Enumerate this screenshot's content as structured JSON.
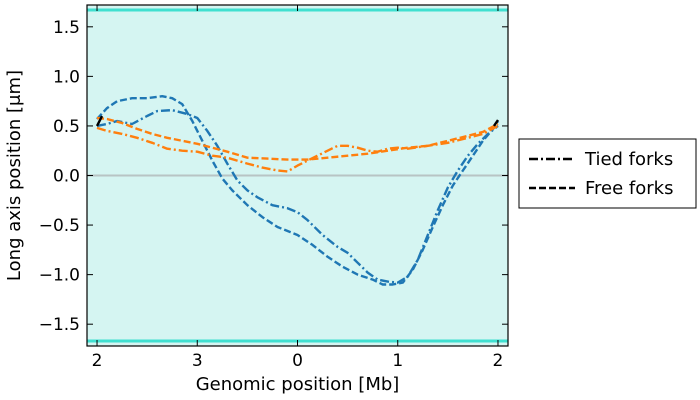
{
  "chart_data": {
    "type": "line",
    "title": "",
    "xlabel": "Genomic position [Mb]",
    "ylabel": "Long axis position [μm]",
    "xlim": [
      -0.1,
      4.1
    ],
    "ylim": [
      -1.72,
      1.72
    ],
    "x_ticks": [
      {
        "pos": 0,
        "label": "2"
      },
      {
        "pos": 1,
        "label": "3"
      },
      {
        "pos": 2,
        "label": "0"
      },
      {
        "pos": 3,
        "label": "1"
      },
      {
        "pos": 4,
        "label": "2"
      }
    ],
    "y_ticks": [
      {
        "value": 1.5,
        "label": "1.5"
      },
      {
        "value": 1.0,
        "label": "1.0"
      },
      {
        "value": 0.5,
        "label": "0.5"
      },
      {
        "value": 0.0,
        "label": "0.0"
      },
      {
        "value": -0.5,
        "label": "−0.5"
      },
      {
        "value": -1.0,
        "label": "−1.0"
      },
      {
        "value": -1.5,
        "label": "−1.5"
      }
    ],
    "background_color": "#d5f5f2",
    "boundary_lines": [
      1.67,
      -1.67
    ],
    "boundary_color": "#40e0d0",
    "zero_line_color": "#b8c4c4",
    "colors": {
      "blue": "#1f77b4",
      "orange": "#ff7f0e"
    },
    "series": [
      {
        "color": "#1f77b4",
        "style": "dashdot",
        "x": [
          0.0,
          0.1,
          0.2,
          0.35,
          0.5,
          0.6,
          0.75,
          0.9,
          1.0,
          1.1,
          1.2,
          1.3,
          1.4,
          1.5,
          1.6,
          1.75,
          1.9,
          2.0,
          2.1,
          2.25,
          2.4,
          2.5,
          2.6,
          2.7,
          2.8,
          2.9,
          3.0,
          3.1,
          3.2,
          3.3,
          3.4,
          3.5,
          3.6,
          3.7,
          3.8,
          3.9,
          4.0
        ],
        "y": [
          0.5,
          0.52,
          0.55,
          0.52,
          0.6,
          0.65,
          0.66,
          0.62,
          0.58,
          0.45,
          0.3,
          0.12,
          -0.05,
          -0.15,
          -0.22,
          -0.3,
          -0.33,
          -0.37,
          -0.45,
          -0.6,
          -0.72,
          -0.78,
          -0.88,
          -0.98,
          -1.05,
          -1.07,
          -1.08,
          -1.02,
          -0.85,
          -0.6,
          -0.35,
          -0.12,
          0.05,
          0.2,
          0.32,
          0.42,
          0.5
        ]
      },
      {
        "color": "#1f77b4",
        "style": "dashed",
        "x": [
          0.0,
          0.1,
          0.2,
          0.35,
          0.5,
          0.65,
          0.75,
          0.85,
          0.95,
          1.05,
          1.15,
          1.25,
          1.35,
          1.5,
          1.65,
          1.8,
          2.0,
          2.15,
          2.3,
          2.45,
          2.6,
          2.75,
          2.85,
          2.95,
          3.05,
          3.15,
          3.25,
          3.35,
          3.45,
          3.55,
          3.65,
          3.75,
          3.85,
          3.95,
          4.0
        ],
        "y": [
          0.57,
          0.68,
          0.75,
          0.78,
          0.78,
          0.8,
          0.78,
          0.72,
          0.55,
          0.35,
          0.15,
          -0.03,
          -0.15,
          -0.3,
          -0.42,
          -0.52,
          -0.6,
          -0.7,
          -0.82,
          -0.92,
          -1.0,
          -1.05,
          -1.1,
          -1.1,
          -1.08,
          -0.95,
          -0.75,
          -0.52,
          -0.3,
          -0.1,
          0.05,
          0.2,
          0.35,
          0.47,
          0.55
        ]
      },
      {
        "color": "#ff7f0e",
        "style": "dashdot",
        "x": [
          0.0,
          0.1,
          0.25,
          0.4,
          0.55,
          0.7,
          0.85,
          1.0,
          1.15,
          1.3,
          1.5,
          1.65,
          1.8,
          1.9,
          2.0,
          2.1,
          2.2,
          2.3,
          2.4,
          2.5,
          2.6,
          2.7,
          2.8,
          2.9,
          3.0,
          3.1,
          3.3,
          3.5,
          3.7,
          3.85,
          4.0
        ],
        "y": [
          0.48,
          0.45,
          0.42,
          0.38,
          0.33,
          0.27,
          0.25,
          0.24,
          0.2,
          0.18,
          0.12,
          0.08,
          0.05,
          0.04,
          0.1,
          0.15,
          0.2,
          0.25,
          0.3,
          0.3,
          0.28,
          0.25,
          0.24,
          0.27,
          0.28,
          0.27,
          0.3,
          0.33,
          0.38,
          0.42,
          0.5
        ]
      },
      {
        "color": "#ff7f0e",
        "style": "dashed",
        "x": [
          0.0,
          0.1,
          0.25,
          0.4,
          0.55,
          0.7,
          0.85,
          1.0,
          1.15,
          1.3,
          1.5,
          1.7,
          1.9,
          2.1,
          2.3,
          2.5,
          2.7,
          2.9,
          3.1,
          3.3,
          3.5,
          3.7,
          3.85,
          4.0
        ],
        "y": [
          0.58,
          0.57,
          0.53,
          0.47,
          0.42,
          0.38,
          0.35,
          0.32,
          0.28,
          0.24,
          0.18,
          0.17,
          0.16,
          0.16,
          0.18,
          0.2,
          0.22,
          0.25,
          0.28,
          0.3,
          0.35,
          0.4,
          0.44,
          0.52
        ]
      }
    ],
    "legend": {
      "position": "outside-right",
      "entries": [
        {
          "label": "Tied forks",
          "style": "dashdot"
        },
        {
          "label": "Free forks",
          "style": "dashed"
        }
      ]
    }
  }
}
